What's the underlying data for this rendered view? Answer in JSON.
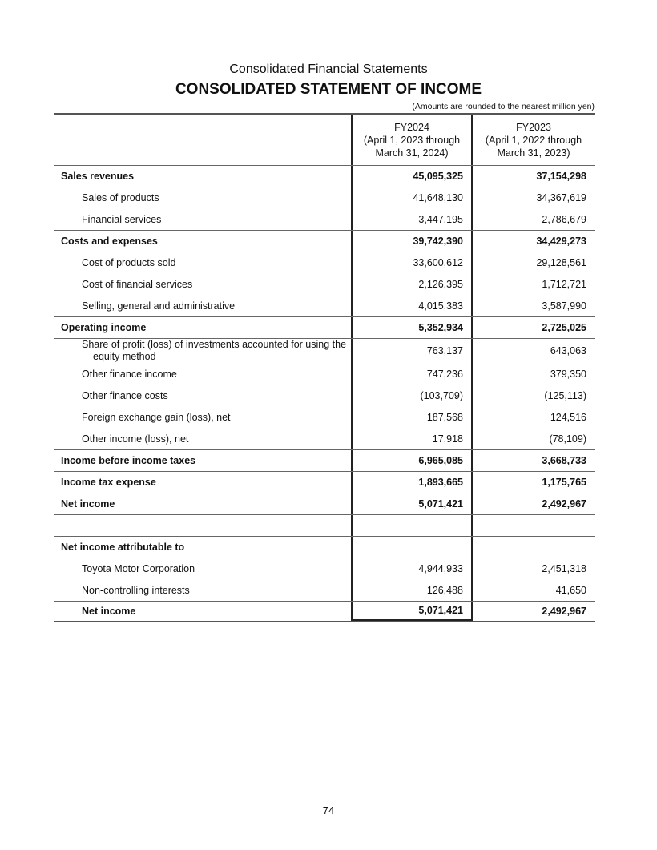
{
  "header": {
    "subtitle": "Consolidated Financial Statements",
    "title": "CONSOLIDATED STATEMENT OF INCOME",
    "note": "(Amounts are rounded to the nearest million yen)"
  },
  "columns": [
    {
      "period": "FY2024",
      "range1": "(April 1, 2023 through",
      "range2": "March 31, 2024)"
    },
    {
      "period": "FY2023",
      "range1": "(April 1, 2022 through",
      "range2": "March 31, 2023)"
    }
  ],
  "rows": [
    {
      "label": "Sales revenues",
      "fy2024": "45,095,325",
      "fy2023": "37,154,298",
      "bold": true,
      "indent": false,
      "line": true
    },
    {
      "label": "Sales of products",
      "fy2024": "41,648,130",
      "fy2023": "34,367,619",
      "bold": false,
      "indent": true,
      "line": false
    },
    {
      "label": "Financial services",
      "fy2024": "3,447,195",
      "fy2023": "2,786,679",
      "bold": false,
      "indent": true,
      "line": false
    },
    {
      "label": "Costs and expenses",
      "fy2024": "39,742,390",
      "fy2023": "34,429,273",
      "bold": true,
      "indent": false,
      "line": true
    },
    {
      "label": "Cost of products sold",
      "fy2024": "33,600,612",
      "fy2023": "29,128,561",
      "bold": false,
      "indent": true,
      "line": false
    },
    {
      "label": "Cost of financial services",
      "fy2024": "2,126,395",
      "fy2023": "1,712,721",
      "bold": false,
      "indent": true,
      "line": false
    },
    {
      "label": "Selling, general and administrative",
      "fy2024": "4,015,383",
      "fy2023": "3,587,990",
      "bold": false,
      "indent": true,
      "line": false
    },
    {
      "label": "Operating income",
      "fy2024": "5,352,934",
      "fy2023": "2,725,025",
      "bold": true,
      "indent": false,
      "line": true
    },
    {
      "label": "Share of profit (loss) of investments accounted for using the equity method",
      "fy2024": "763,137",
      "fy2023": "643,063",
      "bold": false,
      "indent": true,
      "line": true,
      "tall": true
    },
    {
      "label": "Other finance income",
      "fy2024": "747,236",
      "fy2023": "379,350",
      "bold": false,
      "indent": true,
      "line": false
    },
    {
      "label": "Other finance costs",
      "fy2024": "(103,709)",
      "fy2023": "(125,113)",
      "bold": false,
      "indent": true,
      "line": false
    },
    {
      "label": "Foreign exchange gain (loss), net",
      "fy2024": "187,568",
      "fy2023": "124,516",
      "bold": false,
      "indent": true,
      "line": false
    },
    {
      "label": "Other income (loss), net",
      "fy2024": "17,918",
      "fy2023": "(78,109)",
      "bold": false,
      "indent": true,
      "line": false
    },
    {
      "label": "Income before income taxes",
      "fy2024": "6,965,085",
      "fy2023": "3,668,733",
      "bold": true,
      "indent": false,
      "line": true
    },
    {
      "label": "Income tax expense",
      "fy2024": "1,893,665",
      "fy2023": "1,175,765",
      "bold": true,
      "indent": false,
      "line": true
    },
    {
      "label": "Net income",
      "fy2024": "5,071,421",
      "fy2023": "2,492,967",
      "bold": true,
      "indent": false,
      "line": true
    },
    {
      "label": "",
      "fy2024": "",
      "fy2023": "",
      "bold": false,
      "indent": false,
      "line": true
    },
    {
      "label": "Net income attributable to",
      "fy2024": "",
      "fy2023": "",
      "bold": true,
      "indent": false,
      "line": true
    },
    {
      "label": "Toyota Motor Corporation",
      "fy2024": "4,944,933",
      "fy2023": "2,451,318",
      "bold": false,
      "indent": true,
      "line": false
    },
    {
      "label": "Non-controlling interests",
      "fy2024": "126,488",
      "fy2023": "41,650",
      "bold": false,
      "indent": true,
      "line": false
    },
    {
      "label": "Net income",
      "fy2024": "5,071,421",
      "fy2023": "2,492,967",
      "bold": true,
      "indent": true,
      "line": true
    }
  ],
  "page_number": "74"
}
